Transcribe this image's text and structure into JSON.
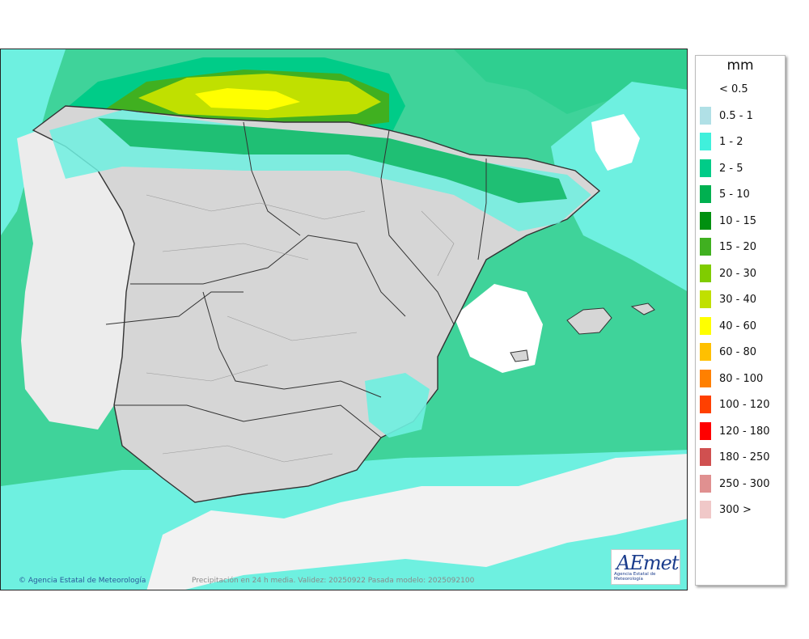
{
  "map": {
    "caption": "Precipitación en 24 h media. Validez: 20250922 Pasada modelo: 2025092100",
    "copyright": "Agencia Estatal de Meteorología",
    "logo": {
      "word": "AEmet",
      "subtitle": "Agencia Estatal de Meteorología"
    },
    "colors": {
      "sea_base": "#3fd39a",
      "land": "#d6d6d6",
      "outside": "#ececec"
    }
  },
  "legend": {
    "unit": "mm",
    "items": [
      {
        "label": "< 0.5",
        "color": ""
      },
      {
        "label": "0.5 - 1",
        "color": "#b0e0e6"
      },
      {
        "label": "1 - 2",
        "color": "#40f0dc"
      },
      {
        "label": "2 - 5",
        "color": "#00cc88"
      },
      {
        "label": "5 - 10",
        "color": "#00b050"
      },
      {
        "label": "10 - 15",
        "color": "#009010"
      },
      {
        "label": "15 - 20",
        "color": "#40b020"
      },
      {
        "label": "20 - 30",
        "color": "#80cc00"
      },
      {
        "label": "30 - 40",
        "color": "#c0e000"
      },
      {
        "label": "40 - 60",
        "color": "#ffff00"
      },
      {
        "label": "60 - 80",
        "color": "#ffc000"
      },
      {
        "label": "80 - 100",
        "color": "#ff8000"
      },
      {
        "label": "100 - 120",
        "color": "#ff4000"
      },
      {
        "label": "120 - 180",
        "color": "#ff0000"
      },
      {
        "label": "180 - 250",
        "color": "#d05050"
      },
      {
        "label": "250 - 300",
        "color": "#e09090"
      },
      {
        "label": "300 >",
        "color": "#f0c8c8"
      }
    ]
  }
}
